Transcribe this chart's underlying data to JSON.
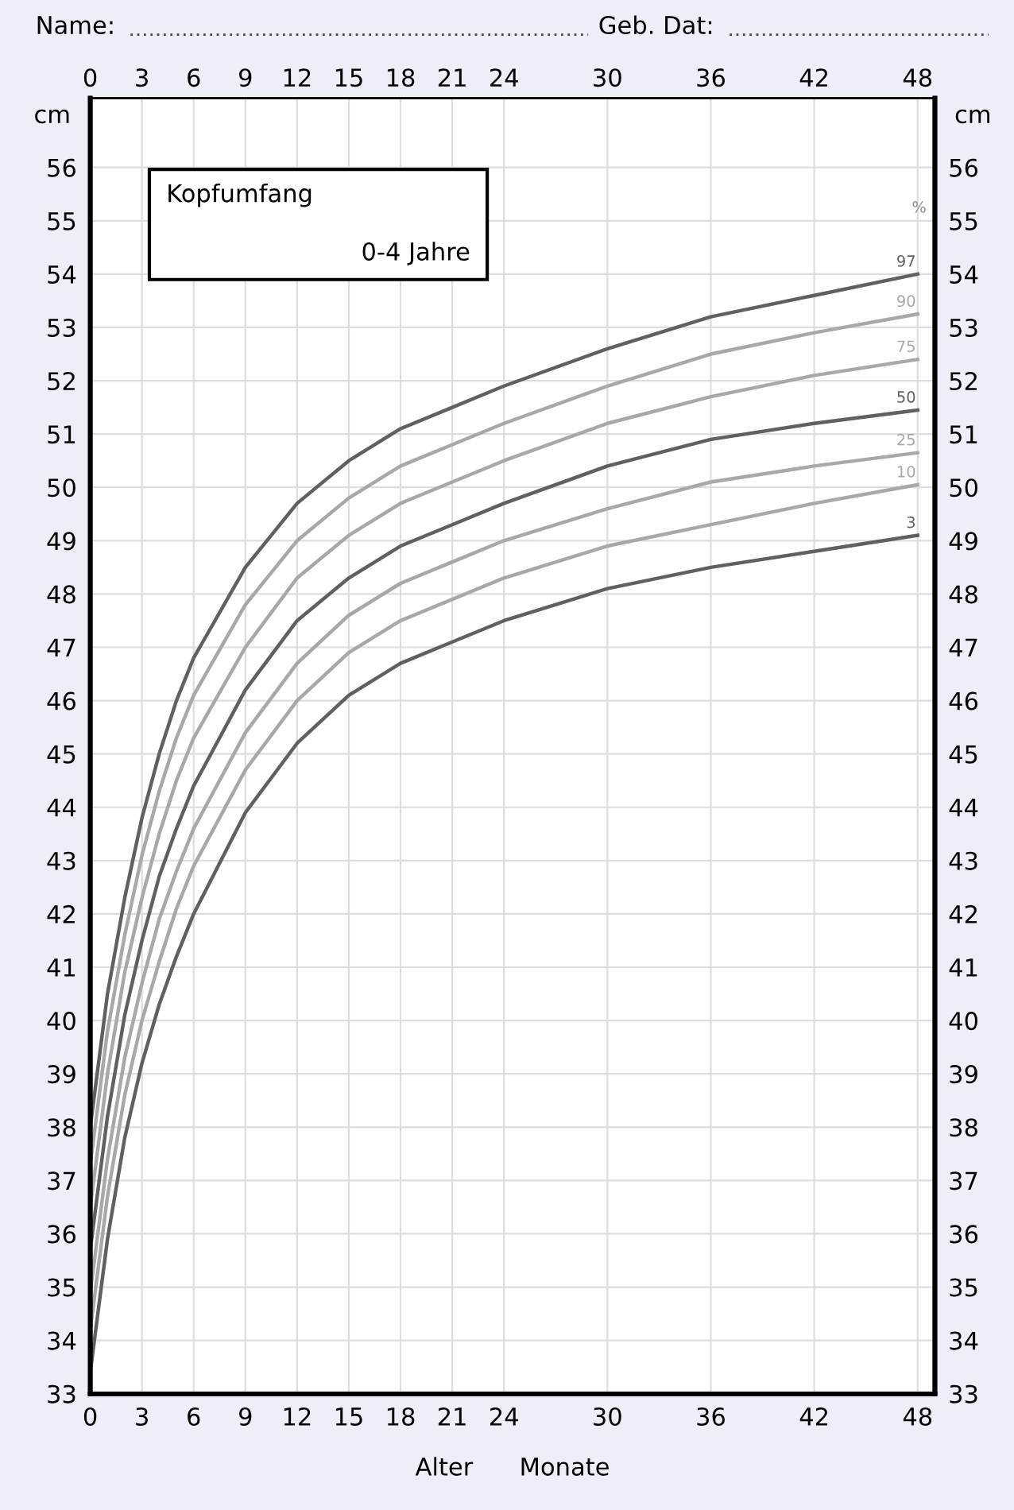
{
  "chart_data": {
    "type": "line",
    "title": "Kopfumfang",
    "subtitle": "0-4 Jahre",
    "xlabel": "Alter      Monate",
    "ylabel": "cm",
    "y2label": "cm",
    "annotations": [
      "Name:",
      "Geb. Dat:",
      "%"
    ],
    "x": [
      0,
      1,
      2,
      3,
      4,
      5,
      6,
      9,
      12,
      15,
      18,
      21,
      24,
      30,
      36,
      42,
      48
    ],
    "series": [
      {
        "name": "3",
        "color": "#606060",
        "values": [
          33.4,
          35.9,
          37.8,
          39.2,
          40.3,
          41.2,
          42.0,
          43.9,
          45.2,
          46.1,
          46.7,
          47.1,
          47.5,
          48.1,
          48.5,
          48.8,
          49.1
        ]
      },
      {
        "name": "10",
        "color": "#a8a8a8",
        "values": [
          34.2,
          36.7,
          38.6,
          40.0,
          41.1,
          42.1,
          42.9,
          44.7,
          46.0,
          46.9,
          47.5,
          47.9,
          48.3,
          48.9,
          49.3,
          49.7,
          50.05
        ]
      },
      {
        "name": "25",
        "color": "#a8a8a8",
        "values": [
          34.9,
          37.4,
          39.3,
          40.7,
          41.9,
          42.8,
          43.6,
          45.4,
          46.7,
          47.6,
          48.2,
          48.6,
          49.0,
          49.6,
          50.1,
          50.4,
          50.65
        ]
      },
      {
        "name": "50",
        "color": "#606060",
        "values": [
          35.7,
          38.2,
          40.1,
          41.5,
          42.7,
          43.6,
          44.4,
          46.2,
          47.5,
          48.3,
          48.9,
          49.3,
          49.7,
          50.4,
          50.9,
          51.2,
          51.45
        ]
      },
      {
        "name": "75",
        "color": "#a8a8a8",
        "values": [
          36.5,
          39.0,
          40.9,
          42.3,
          43.5,
          44.5,
          45.3,
          47.0,
          48.3,
          49.1,
          49.7,
          50.1,
          50.5,
          51.2,
          51.7,
          52.1,
          52.4
        ]
      },
      {
        "name": "90",
        "color": "#a8a8a8",
        "values": [
          37.3,
          39.8,
          41.6,
          43.1,
          44.3,
          45.3,
          46.1,
          47.8,
          49.0,
          49.8,
          50.4,
          50.8,
          51.2,
          51.9,
          52.5,
          52.9,
          53.25
        ]
      },
      {
        "name": "97",
        "color": "#606060",
        "values": [
          38.0,
          40.5,
          42.3,
          43.8,
          45.0,
          46.0,
          46.8,
          48.5,
          49.7,
          50.5,
          51.1,
          51.5,
          51.9,
          52.6,
          53.2,
          53.6,
          54.0
        ]
      }
    ],
    "xlim": [
      0,
      49
    ],
    "ylim": [
      33,
      57.3
    ],
    "x2lim": [
      0,
      49
    ],
    "y2lim": [
      33,
      57.3
    ],
    "xticks": [
      0,
      3,
      6,
      9,
      12,
      15,
      18,
      21,
      24,
      30,
      36,
      42,
      48
    ],
    "x2ticks": [
      0,
      3,
      6,
      9,
      12,
      15,
      18,
      21,
      24,
      30,
      36,
      42,
      48
    ],
    "yticks": [
      33,
      34,
      35,
      36,
      37,
      38,
      39,
      40,
      41,
      42,
      43,
      44,
      45,
      46,
      47,
      48,
      49,
      50,
      51,
      52,
      53,
      54,
      55,
      56
    ],
    "y2ticks": [
      33,
      34,
      35,
      36,
      37,
      38,
      39,
      40,
      41,
      42,
      43,
      44,
      45,
      46,
      47,
      48,
      49,
      50,
      51,
      52,
      53,
      54,
      55,
      56
    ],
    "grid": true,
    "marker": "none",
    "line_style": "solid"
  }
}
